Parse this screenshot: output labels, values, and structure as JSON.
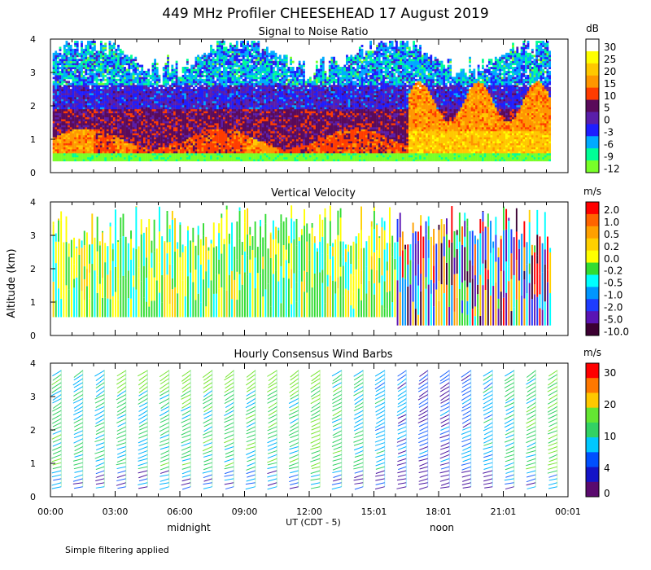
{
  "figure": {
    "title": "449 MHz Profiler CHEESEHEAD 17 August 2019",
    "ylabel": "Altitude (km)",
    "xlabel": "UT  (CDT - 5)",
    "local_time_labels": [
      "midnight",
      "noon"
    ],
    "footnote": "Simple filtering applied"
  },
  "chart_data": [
    {
      "type": "heatmap",
      "title": "Signal to Noise Ratio",
      "ylabel": "Altitude (km)",
      "ylim": [
        0,
        4
      ],
      "yticks": [
        "0",
        "1",
        "2",
        "3",
        "4"
      ],
      "xticks": [
        "00:00",
        "03:00",
        "06:00",
        "09:00",
        "12:00",
        "15:01",
        "18:01",
        "21:01",
        "00:01"
      ],
      "colorbar": {
        "unit": "dB",
        "labels": [
          "30",
          "25",
          "20",
          "15",
          "10",
          "5",
          "0",
          "-3",
          "-6",
          "-9",
          "-12"
        ],
        "colors": [
          "#ffffff",
          "#ffff00",
          "#ffc800",
          "#ff9600",
          "#ff3c00",
          "#5a0a5a",
          "#5a1eaa",
          "#1e1eff",
          "#00aaff",
          "#00ff96",
          "#78ff28"
        ]
      },
      "description_values": {
        "lower_layer_snr_db": "10-20",
        "upper_layer_snr_db": "-12 to 5"
      }
    },
    {
      "type": "heatmap",
      "title": "Vertical Velocity",
      "ylabel": "Altitude (km)",
      "ylim": [
        0,
        4
      ],
      "yticks": [
        "0",
        "1",
        "2",
        "3",
        "4"
      ],
      "xticks": [
        "00:00",
        "03:00",
        "06:00",
        "09:00",
        "12:00",
        "15:01",
        "18:01",
        "21:01",
        "00:01"
      ],
      "colorbar": {
        "unit": "m/s",
        "labels": [
          "2.0",
          "1.0",
          "0.5",
          "0.2",
          "0.0",
          "-0.2",
          "-0.5",
          "-1.0",
          "-2.0",
          "-5.0",
          "-10.0"
        ],
        "colors": [
          "#ff0000",
          "#ff6400",
          "#ffa000",
          "#ffd000",
          "#ffff00",
          "#32dc32",
          "#00ffff",
          "#0096ff",
          "#1e3cff",
          "#5a14b4",
          "#3c0032"
        ]
      }
    },
    {
      "type": "scatter",
      "title": "Hourly Consensus Wind Barbs",
      "ylabel": "Altitude (km)",
      "ylim": [
        0,
        4
      ],
      "yticks": [
        "0",
        "1",
        "2",
        "3",
        "4"
      ],
      "xticks": [
        "00:00",
        "03:00",
        "06:00",
        "09:00",
        "12:00",
        "15:01",
        "18:01",
        "21:01",
        "00:01"
      ],
      "colorbar": {
        "unit": "m/s",
        "labels": [
          "30",
          "20",
          "10",
          "4",
          "0"
        ],
        "colors": [
          "#ff0000",
          "#ff7800",
          "#ffc800",
          "#64e632",
          "#32d264",
          "#00c8ff",
          "#0050ff",
          "#1414c8",
          "#5a0a6e"
        ]
      },
      "wind_speed_ms_by_hour": [
        8,
        7,
        7,
        7,
        7,
        8,
        8,
        8,
        8,
        8,
        8,
        8,
        9,
        8,
        7,
        6,
        5,
        4,
        4,
        5,
        6,
        7,
        8,
        9
      ]
    }
  ]
}
